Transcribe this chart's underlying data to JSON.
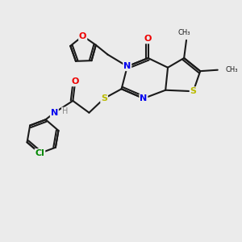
{
  "background_color": "#ebebeb",
  "bond_color": "#1a1a1a",
  "atom_colors": {
    "N": "#0000ee",
    "O": "#ee0000",
    "S": "#bbbb00",
    "Cl": "#008800",
    "H": "#888888",
    "C": "#1a1a1a"
  },
  "figsize": [
    3.0,
    3.0
  ],
  "dpi": 100
}
